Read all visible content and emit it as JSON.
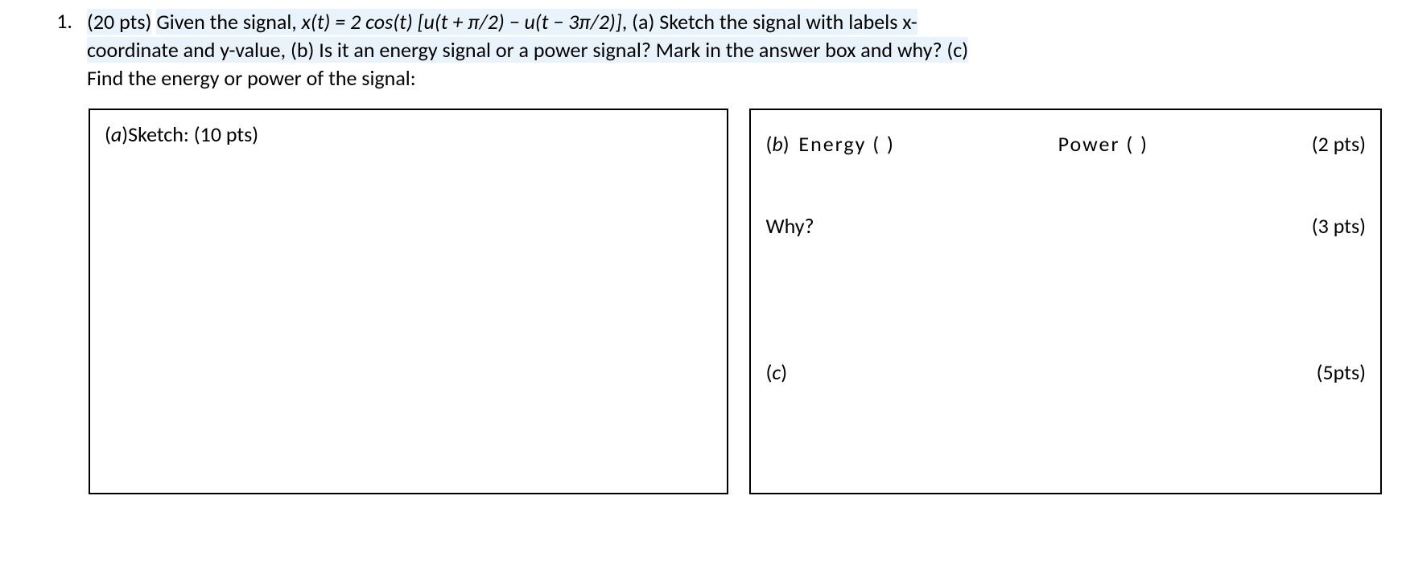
{
  "question": {
    "number": "1.",
    "points_label": "(20 pts)",
    "prompt_line1_a": "Given the signal, ",
    "prompt_equation": "x(t) = 2 cos(t) [u(t + π/2) − u(t − 3π/2)]",
    "prompt_line1_b": ", (a) Sketch the signal with labels x-",
    "prompt_line2": "coordinate and y-value, (b) Is it an energy signal or a power signal? Mark in the answer box and why? (c)",
    "prompt_line3": "Find the energy or power of the signal:"
  },
  "box_a": {
    "label_prefix": "(a)",
    "label_text": "Sketch: (10 pts)"
  },
  "box_b": {
    "part_b_prefix": "(b)",
    "energy_label": "Energy (    )",
    "power_label": "Power (    )",
    "b_points": "(2 pts)",
    "why_label": "Why?",
    "why_points": "(3 pts)",
    "part_c_prefix": "(c)",
    "c_points": "(5pts)"
  }
}
